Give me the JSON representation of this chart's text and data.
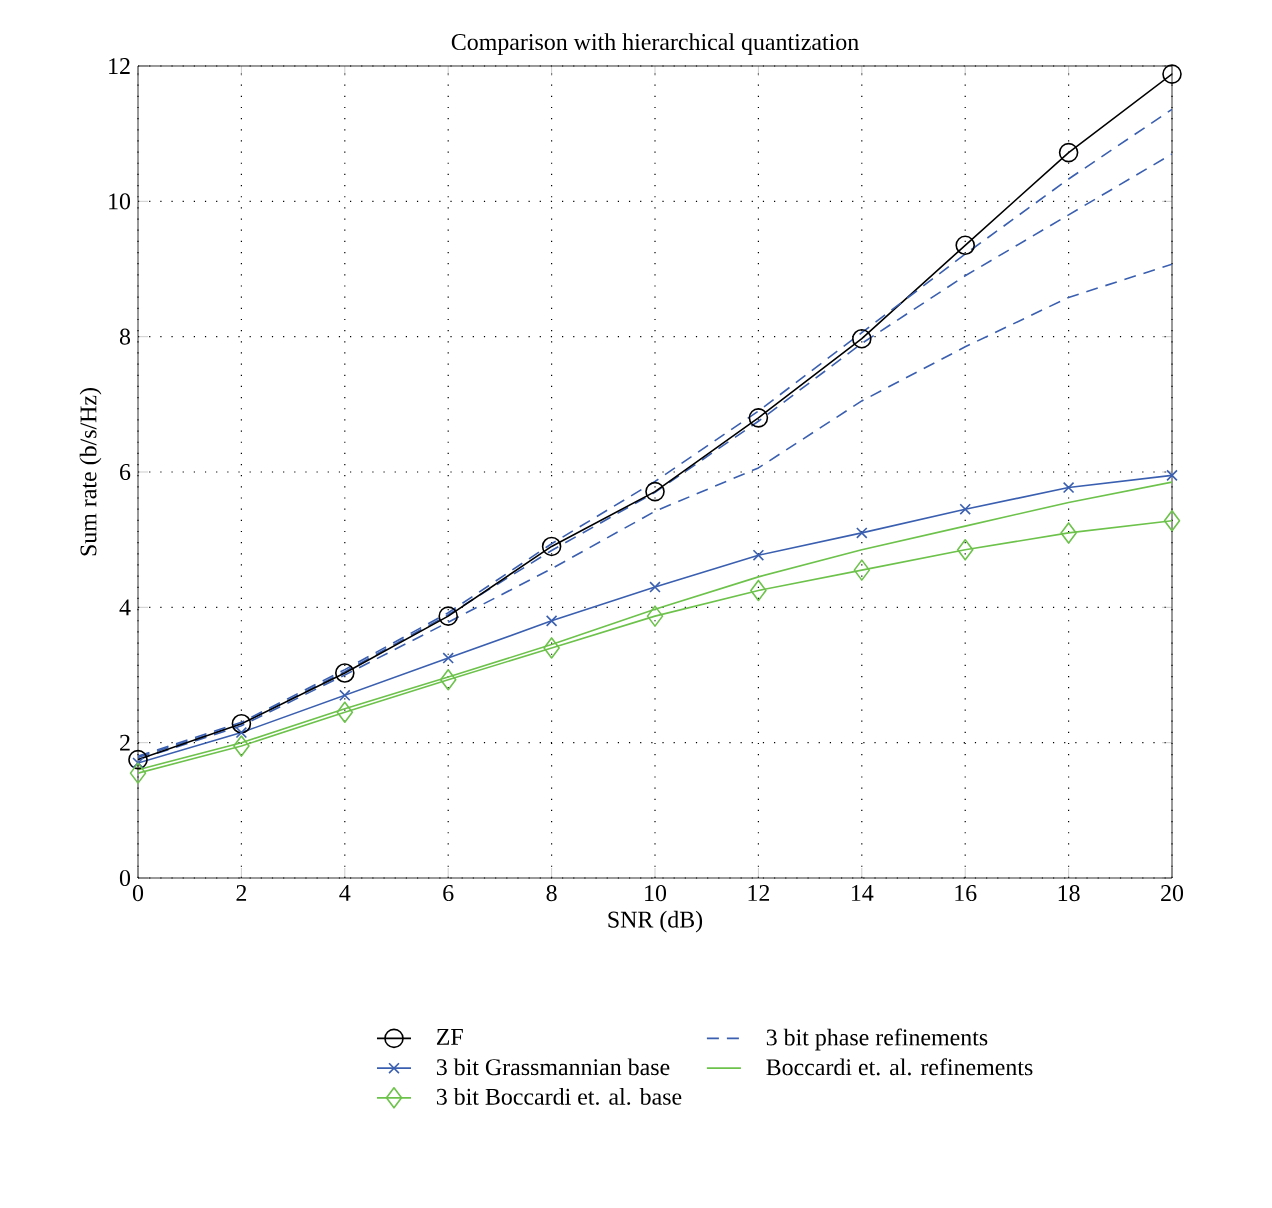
{
  "chart_data": {
    "type": "line",
    "title": "Comparison with hierarchical quantization",
    "xlabel": "SNR (dB)",
    "ylabel": "Sum rate (b/s/Hz)",
    "x": [
      0,
      2,
      4,
      6,
      8,
      10,
      12,
      14,
      16,
      18,
      20
    ],
    "xlim": [
      0,
      20
    ],
    "xticks": [
      0,
      2,
      4,
      6,
      8,
      10,
      12,
      14,
      16,
      18,
      20
    ],
    "ylim": [
      0,
      12
    ],
    "yticks": [
      0,
      2,
      4,
      6,
      8,
      10,
      12
    ],
    "grid": true,
    "legend": "bottom",
    "series": [
      {
        "name": "ZF",
        "color": "#000000",
        "marker": "circle",
        "line_style": "solid",
        "values": [
          1.75,
          2.28,
          3.03,
          3.87,
          4.9,
          5.71,
          6.8,
          7.97,
          9.35,
          10.72,
          11.88
        ]
      },
      {
        "name": "3 bit Grassmannian base",
        "color": "#3a5fb0",
        "marker": "cross",
        "line_style": "solid",
        "values": [
          1.7,
          2.15,
          2.7,
          3.25,
          3.8,
          4.3,
          4.77,
          5.1,
          5.45,
          5.77,
          5.95
        ]
      },
      {
        "name": "3 bit Boccardi et. al. base",
        "color": "#6cc24a",
        "marker": "diamond",
        "line_style": "solid",
        "values": [
          1.55,
          1.95,
          2.45,
          2.93,
          3.4,
          3.87,
          4.25,
          4.55,
          4.85,
          5.1,
          5.28
        ]
      },
      {
        "name": "3 bit phase refinements",
        "color": "#3a5fb0",
        "marker": "none",
        "line_style": "dashed",
        "values": [
          1.8,
          2.3,
          3.08,
          3.92,
          4.94,
          5.86,
          6.9,
          8.06,
          9.22,
          10.33,
          11.36
        ]
      },
      {
        "color": "#3a5fb0",
        "marker": "none",
        "line_style": "dashed",
        "values": [
          1.78,
          2.28,
          3.05,
          3.89,
          4.84,
          5.7,
          6.75,
          7.9,
          8.9,
          9.8,
          10.7
        ]
      },
      {
        "color": "#3a5fb0",
        "marker": "none",
        "line_style": "dashed",
        "values": [
          1.75,
          2.25,
          3.0,
          3.78,
          4.57,
          5.42,
          6.06,
          7.05,
          7.85,
          8.58,
          9.07
        ]
      },
      {
        "name": "Boccardi et. al. refinements",
        "color": "#6cc24a",
        "marker": "none",
        "line_style": "solid",
        "values": [
          1.6,
          2.0,
          2.5,
          2.97,
          3.45,
          3.97,
          4.45,
          4.85,
          5.2,
          5.55,
          5.85
        ]
      }
    ]
  }
}
